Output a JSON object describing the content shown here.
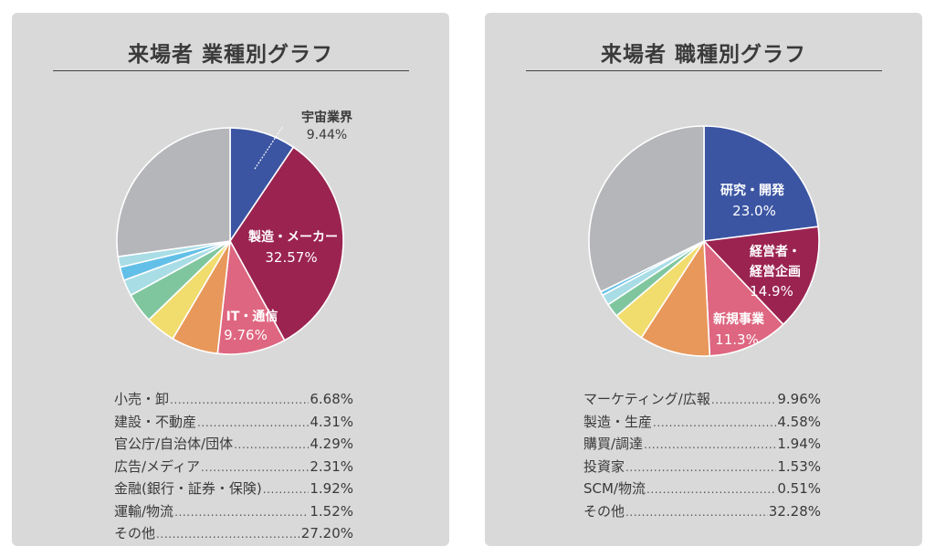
{
  "colors": {
    "panel_bg": "#d9d9d9",
    "blue": "#3b55a3",
    "maroon": "#9b2350",
    "pink": "#de6680",
    "orange": "#e8985a",
    "yellow": "#f1dc6e",
    "green": "#7fc69f",
    "light_cyan": "#a9dde6",
    "sky": "#62bfe8",
    "gray": "#b5b6ba"
  },
  "chart_data": [
    {
      "type": "pie",
      "title": "来場者 業種別グラフ",
      "slices": [
        {
          "label": "宇宙業界",
          "value": 9.44,
          "display": "9.44%",
          "color": "#3b55a3"
        },
        {
          "label": "製造・メーカー",
          "value": 32.57,
          "display": "32.57%",
          "color": "#9b2350"
        },
        {
          "label": "IT・通信",
          "value": 9.76,
          "display": "9.76%",
          "color": "#de6680"
        },
        {
          "label": "小売・卸",
          "value": 6.68,
          "display": "6.68%",
          "color": "#e8985a"
        },
        {
          "label": "建設・不動産",
          "value": 4.31,
          "display": "4.31%",
          "color": "#f1dc6e"
        },
        {
          "label": "官公庁/自治体/団体",
          "value": 4.29,
          "display": "4.29%",
          "color": "#7fc69f"
        },
        {
          "label": "広告/メディア",
          "value": 2.31,
          "display": "2.31%",
          "color": "#a9dde6"
        },
        {
          "label": "金融(銀行・証券・保険)",
          "value": 1.92,
          "display": "1.92%",
          "color": "#62bfe8"
        },
        {
          "label": "運輸/物流",
          "value": 1.52,
          "display": "1.52%",
          "color": "#a9dde6"
        },
        {
          "label": "その他",
          "value": 27.2,
          "display": "27.20%",
          "color": "#b5b6ba"
        }
      ],
      "inner_labels": [
        {
          "name": "宇宙業界",
          "value": "9.44%"
        },
        {
          "name": "製造・メーカー",
          "value": "32.57%"
        },
        {
          "name": "IT・通信",
          "value": "9.76%"
        }
      ],
      "legend": [
        {
          "label": "小売・卸",
          "value": "6.68%"
        },
        {
          "label": "建設・不動産",
          "value": "4.31%"
        },
        {
          "label": "官公庁/自治体/団体",
          "value": "4.29%"
        },
        {
          "label": "広告/メディア",
          "value": "2.31%"
        },
        {
          "label": "金融(銀行・証券・保険)",
          "value": "1.92%"
        },
        {
          "label": "運輸/物流",
          "value": "1.52%"
        },
        {
          "label": "その他",
          "value": "27.20%"
        }
      ]
    },
    {
      "type": "pie",
      "title": "来場者 職種別グラフ",
      "slices": [
        {
          "label": "研究・開発",
          "value": 23.0,
          "display": "23.0%",
          "color": "#3b55a3"
        },
        {
          "label": "経営者・経営企画",
          "value": 14.9,
          "display": "14.9%",
          "color": "#9b2350"
        },
        {
          "label": "新規事業",
          "value": 11.3,
          "display": "11.3%",
          "color": "#de6680"
        },
        {
          "label": "マーケティング/広報",
          "value": 9.96,
          "display": "9.96%",
          "color": "#e8985a"
        },
        {
          "label": "製造・生産",
          "value": 4.58,
          "display": "4.58%",
          "color": "#f1dc6e"
        },
        {
          "label": "購買/調達",
          "value": 1.94,
          "display": "1.94%",
          "color": "#7fc69f"
        },
        {
          "label": "投資家",
          "value": 1.53,
          "display": "1.53%",
          "color": "#a9dde6"
        },
        {
          "label": "SCM/物流",
          "value": 0.51,
          "display": "0.51%",
          "color": "#62bfe8"
        },
        {
          "label": "その他",
          "value": 32.28,
          "display": "32.28%",
          "color": "#b5b6ba"
        }
      ],
      "inner_labels": [
        {
          "name": "研究・開発",
          "value": "23.0%"
        },
        {
          "name_lines": [
            "経営者・",
            "経営企画"
          ],
          "value": "14.9%"
        },
        {
          "name": "新規事業",
          "value": "11.3%"
        }
      ],
      "legend": [
        {
          "label": "マーケティング/広報",
          "value": "9.96%"
        },
        {
          "label": "製造・生産",
          "value": "4.58%"
        },
        {
          "label": "購買/調達",
          "value": "1.94%"
        },
        {
          "label": "投資家",
          "value": "1.53%"
        },
        {
          "label": "SCM/物流",
          "value": "0.51%"
        },
        {
          "label": "その他",
          "value": "32.28%"
        }
      ]
    }
  ]
}
